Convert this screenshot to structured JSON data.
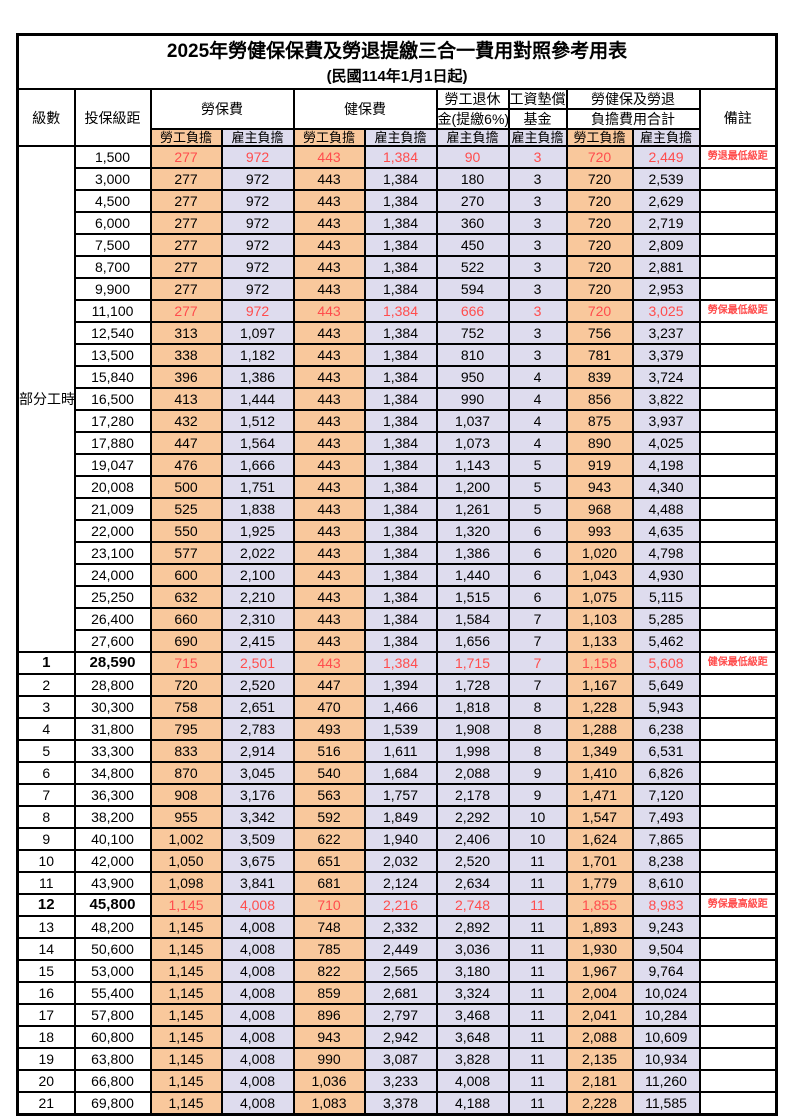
{
  "title": "2025年勞健保保費及勞退提繳三合一費用對照參考用表",
  "subtitle": "(民國114年1月1日起)",
  "colors": {
    "employee_bg": "#F9C89C",
    "employer_bg": "#DEDCEE",
    "highlight_red": "#FF4D4D",
    "border": "#000000"
  },
  "header": {
    "level": "級數",
    "bracket": "投保級距",
    "labor": "勞保費",
    "health": "健保費",
    "pension_line1": "勞工退休",
    "pension_line2": "金(提繳6%)",
    "wage_fund_line1": "工資墊償",
    "wage_fund_line2": "基金",
    "total_line1": "勞健保及勞退",
    "total_line2": "負擔費用合計",
    "employee": "勞工負擔",
    "employer": "雇主負擔",
    "note": "備註"
  },
  "part_time": {
    "label": "部分工時",
    "row_span": 23
  },
  "rows": [
    {
      "level": null,
      "bracket": "1,500",
      "values": [
        "277",
        "972",
        "443",
        "1,384",
        "90",
        "3",
        "720",
        "2,449"
      ],
      "note": "勞退最低級距",
      "red": true,
      "bold": false
    },
    {
      "level": null,
      "bracket": "3,000",
      "values": [
        "277",
        "972",
        "443",
        "1,384",
        "180",
        "3",
        "720",
        "2,539"
      ],
      "note": "",
      "red": false,
      "bold": false
    },
    {
      "level": null,
      "bracket": "4,500",
      "values": [
        "277",
        "972",
        "443",
        "1,384",
        "270",
        "3",
        "720",
        "2,629"
      ],
      "note": "",
      "red": false,
      "bold": false
    },
    {
      "level": null,
      "bracket": "6,000",
      "values": [
        "277",
        "972",
        "443",
        "1,384",
        "360",
        "3",
        "720",
        "2,719"
      ],
      "note": "",
      "red": false,
      "bold": false
    },
    {
      "level": null,
      "bracket": "7,500",
      "values": [
        "277",
        "972",
        "443",
        "1,384",
        "450",
        "3",
        "720",
        "2,809"
      ],
      "note": "",
      "red": false,
      "bold": false
    },
    {
      "level": null,
      "bracket": "8,700",
      "values": [
        "277",
        "972",
        "443",
        "1,384",
        "522",
        "3",
        "720",
        "2,881"
      ],
      "note": "",
      "red": false,
      "bold": false
    },
    {
      "level": null,
      "bracket": "9,900",
      "values": [
        "277",
        "972",
        "443",
        "1,384",
        "594",
        "3",
        "720",
        "2,953"
      ],
      "note": "",
      "red": false,
      "bold": false
    },
    {
      "level": null,
      "bracket": "11,100",
      "values": [
        "277",
        "972",
        "443",
        "1,384",
        "666",
        "3",
        "720",
        "3,025"
      ],
      "note": "勞保最低級距",
      "red": true,
      "bold": false
    },
    {
      "level": null,
      "bracket": "12,540",
      "values": [
        "313",
        "1,097",
        "443",
        "1,384",
        "752",
        "3",
        "756",
        "3,237"
      ],
      "note": "",
      "red": false,
      "bold": false
    },
    {
      "level": null,
      "bracket": "13,500",
      "values": [
        "338",
        "1,182",
        "443",
        "1,384",
        "810",
        "3",
        "781",
        "3,379"
      ],
      "note": "",
      "red": false,
      "bold": false
    },
    {
      "level": null,
      "bracket": "15,840",
      "values": [
        "396",
        "1,386",
        "443",
        "1,384",
        "950",
        "4",
        "839",
        "3,724"
      ],
      "note": "",
      "red": false,
      "bold": false
    },
    {
      "level": null,
      "bracket": "16,500",
      "values": [
        "413",
        "1,444",
        "443",
        "1,384",
        "990",
        "4",
        "856",
        "3,822"
      ],
      "note": "",
      "red": false,
      "bold": false
    },
    {
      "level": null,
      "bracket": "17,280",
      "values": [
        "432",
        "1,512",
        "443",
        "1,384",
        "1,037",
        "4",
        "875",
        "3,937"
      ],
      "note": "",
      "red": false,
      "bold": false
    },
    {
      "level": null,
      "bracket": "17,880",
      "values": [
        "447",
        "1,564",
        "443",
        "1,384",
        "1,073",
        "4",
        "890",
        "4,025"
      ],
      "note": "",
      "red": false,
      "bold": false
    },
    {
      "level": null,
      "bracket": "19,047",
      "values": [
        "476",
        "1,666",
        "443",
        "1,384",
        "1,143",
        "5",
        "919",
        "4,198"
      ],
      "note": "",
      "red": false,
      "bold": false
    },
    {
      "level": null,
      "bracket": "20,008",
      "values": [
        "500",
        "1,751",
        "443",
        "1,384",
        "1,200",
        "5",
        "943",
        "4,340"
      ],
      "note": "",
      "red": false,
      "bold": false
    },
    {
      "level": null,
      "bracket": "21,009",
      "values": [
        "525",
        "1,838",
        "443",
        "1,384",
        "1,261",
        "5",
        "968",
        "4,488"
      ],
      "note": "",
      "red": false,
      "bold": false
    },
    {
      "level": null,
      "bracket": "22,000",
      "values": [
        "550",
        "1,925",
        "443",
        "1,384",
        "1,320",
        "6",
        "993",
        "4,635"
      ],
      "note": "",
      "red": false,
      "bold": false
    },
    {
      "level": null,
      "bracket": "23,100",
      "values": [
        "577",
        "2,022",
        "443",
        "1,384",
        "1,386",
        "6",
        "1,020",
        "4,798"
      ],
      "note": "",
      "red": false,
      "bold": false
    },
    {
      "level": null,
      "bracket": "24,000",
      "values": [
        "600",
        "2,100",
        "443",
        "1,384",
        "1,440",
        "6",
        "1,043",
        "4,930"
      ],
      "note": "",
      "red": false,
      "bold": false
    },
    {
      "level": null,
      "bracket": "25,250",
      "values": [
        "632",
        "2,210",
        "443",
        "1,384",
        "1,515",
        "6",
        "1,075",
        "5,115"
      ],
      "note": "",
      "red": false,
      "bold": false
    },
    {
      "level": null,
      "bracket": "26,400",
      "values": [
        "660",
        "2,310",
        "443",
        "1,384",
        "1,584",
        "7",
        "1,103",
        "5,285"
      ],
      "note": "",
      "red": false,
      "bold": false
    },
    {
      "level": null,
      "bracket": "27,600",
      "values": [
        "690",
        "2,415",
        "443",
        "1,384",
        "1,656",
        "7",
        "1,133",
        "5,462"
      ],
      "note": "",
      "red": false,
      "bold": false
    },
    {
      "level": "1",
      "bracket": "28,590",
      "values": [
        "715",
        "2,501",
        "443",
        "1,384",
        "1,715",
        "7",
        "1,158",
        "5,608"
      ],
      "note": "健保最低級距",
      "red": true,
      "bold": true
    },
    {
      "level": "2",
      "bracket": "28,800",
      "values": [
        "720",
        "2,520",
        "447",
        "1,394",
        "1,728",
        "7",
        "1,167",
        "5,649"
      ],
      "note": "",
      "red": false,
      "bold": false
    },
    {
      "level": "3",
      "bracket": "30,300",
      "values": [
        "758",
        "2,651",
        "470",
        "1,466",
        "1,818",
        "8",
        "1,228",
        "5,943"
      ],
      "note": "",
      "red": false,
      "bold": false
    },
    {
      "level": "4",
      "bracket": "31,800",
      "values": [
        "795",
        "2,783",
        "493",
        "1,539",
        "1,908",
        "8",
        "1,288",
        "6,238"
      ],
      "note": "",
      "red": false,
      "bold": false
    },
    {
      "level": "5",
      "bracket": "33,300",
      "values": [
        "833",
        "2,914",
        "516",
        "1,611",
        "1,998",
        "8",
        "1,349",
        "6,531"
      ],
      "note": "",
      "red": false,
      "bold": false
    },
    {
      "level": "6",
      "bracket": "34,800",
      "values": [
        "870",
        "3,045",
        "540",
        "1,684",
        "2,088",
        "9",
        "1,410",
        "6,826"
      ],
      "note": "",
      "red": false,
      "bold": false
    },
    {
      "level": "7",
      "bracket": "36,300",
      "values": [
        "908",
        "3,176",
        "563",
        "1,757",
        "2,178",
        "9",
        "1,471",
        "7,120"
      ],
      "note": "",
      "red": false,
      "bold": false
    },
    {
      "level": "8",
      "bracket": "38,200",
      "values": [
        "955",
        "3,342",
        "592",
        "1,849",
        "2,292",
        "10",
        "1,547",
        "7,493"
      ],
      "note": "",
      "red": false,
      "bold": false
    },
    {
      "level": "9",
      "bracket": "40,100",
      "values": [
        "1,002",
        "3,509",
        "622",
        "1,940",
        "2,406",
        "10",
        "1,624",
        "7,865"
      ],
      "note": "",
      "red": false,
      "bold": false
    },
    {
      "level": "10",
      "bracket": "42,000",
      "values": [
        "1,050",
        "3,675",
        "651",
        "2,032",
        "2,520",
        "11",
        "1,701",
        "8,238"
      ],
      "note": "",
      "red": false,
      "bold": false
    },
    {
      "level": "11",
      "bracket": "43,900",
      "values": [
        "1,098",
        "3,841",
        "681",
        "2,124",
        "2,634",
        "11",
        "1,779",
        "8,610"
      ],
      "note": "",
      "red": false,
      "bold": false
    },
    {
      "level": "12",
      "bracket": "45,800",
      "values": [
        "1,145",
        "4,008",
        "710",
        "2,216",
        "2,748",
        "11",
        "1,855",
        "8,983"
      ],
      "note": "勞保最高級距",
      "red": true,
      "bold": true
    },
    {
      "level": "13",
      "bracket": "48,200",
      "values": [
        "1,145",
        "4,008",
        "748",
        "2,332",
        "2,892",
        "11",
        "1,893",
        "9,243"
      ],
      "note": "",
      "red": false,
      "bold": false
    },
    {
      "level": "14",
      "bracket": "50,600",
      "values": [
        "1,145",
        "4,008",
        "785",
        "2,449",
        "3,036",
        "11",
        "1,930",
        "9,504"
      ],
      "note": "",
      "red": false,
      "bold": false
    },
    {
      "level": "15",
      "bracket": "53,000",
      "values": [
        "1,145",
        "4,008",
        "822",
        "2,565",
        "3,180",
        "11",
        "1,967",
        "9,764"
      ],
      "note": "",
      "red": false,
      "bold": false
    },
    {
      "level": "16",
      "bracket": "55,400",
      "values": [
        "1,145",
        "4,008",
        "859",
        "2,681",
        "3,324",
        "11",
        "2,004",
        "10,024"
      ],
      "note": "",
      "red": false,
      "bold": false
    },
    {
      "level": "17",
      "bracket": "57,800",
      "values": [
        "1,145",
        "4,008",
        "896",
        "2,797",
        "3,468",
        "11",
        "2,041",
        "10,284"
      ],
      "note": "",
      "red": false,
      "bold": false
    },
    {
      "level": "18",
      "bracket": "60,800",
      "values": [
        "1,145",
        "4,008",
        "943",
        "2,942",
        "3,648",
        "11",
        "2,088",
        "10,609"
      ],
      "note": "",
      "red": false,
      "bold": false
    },
    {
      "level": "19",
      "bracket": "63,800",
      "values": [
        "1,145",
        "4,008",
        "990",
        "3,087",
        "3,828",
        "11",
        "2,135",
        "10,934"
      ],
      "note": "",
      "red": false,
      "bold": false
    },
    {
      "level": "20",
      "bracket": "66,800",
      "values": [
        "1,145",
        "4,008",
        "1,036",
        "3,233",
        "4,008",
        "11",
        "2,181",
        "11,260"
      ],
      "note": "",
      "red": false,
      "bold": false
    },
    {
      "level": "21",
      "bracket": "69,800",
      "values": [
        "1,145",
        "4,008",
        "1,083",
        "3,378",
        "4,188",
        "11",
        "2,228",
        "11,585"
      ],
      "note": "",
      "red": false,
      "bold": false
    }
  ]
}
